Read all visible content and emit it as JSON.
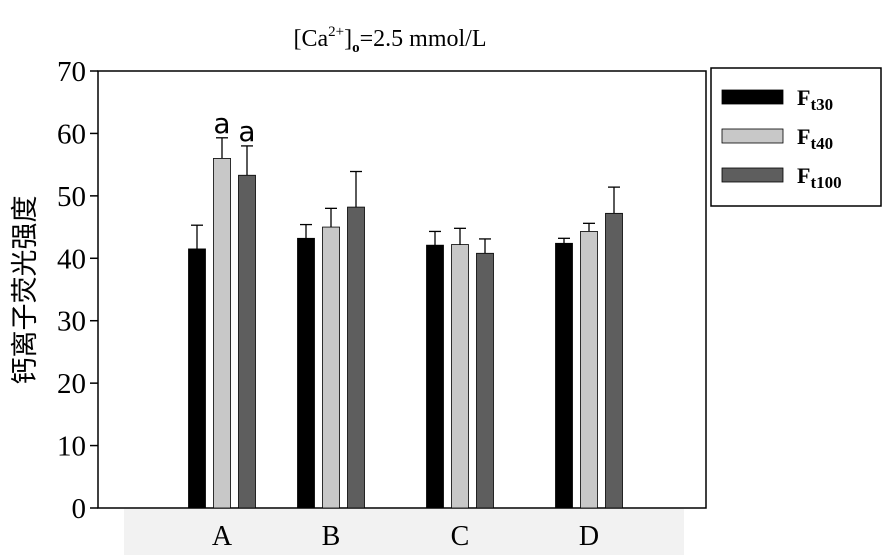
{
  "chart_data": {
    "type": "bar",
    "title_main": "[Ca",
    "title_sup": "2+",
    "title_bracket": "]",
    "title_sub": "o",
    "title_rest": "=2.5 mmol/L",
    "ylabel": "钙离子荧光强度",
    "xlabel": "",
    "ylim": [
      0,
      70
    ],
    "yticks": [
      "0",
      "10",
      "20",
      "30",
      "40",
      "50",
      "60",
      "70"
    ],
    "categories": [
      "A",
      "B",
      "C",
      "D"
    ],
    "series": [
      {
        "name_main": "F",
        "name_sub": "t30",
        "color": "#000000",
        "values": [
          41.5,
          43.2,
          42.1,
          42.4
        ],
        "errors": [
          3.8,
          2.2,
          2.2,
          0.8
        ]
      },
      {
        "name_main": "F",
        "name_sub": "t40",
        "color": "#c8c8c8",
        "values": [
          56.0,
          45.0,
          42.2,
          44.3
        ],
        "errors": [
          3.3,
          3.0,
          2.6,
          1.3
        ]
      },
      {
        "name_main": "F",
        "name_sub": "t100",
        "color": "#5e5e5e",
        "values": [
          53.3,
          48.2,
          40.8,
          47.2
        ],
        "errors": [
          4.7,
          5.7,
          2.3,
          4.2
        ]
      }
    ],
    "annotations": [
      {
        "category": "A",
        "series": 1,
        "text": "a"
      },
      {
        "category": "A",
        "series": 2,
        "text": "a"
      }
    ],
    "legend_position": "right"
  }
}
